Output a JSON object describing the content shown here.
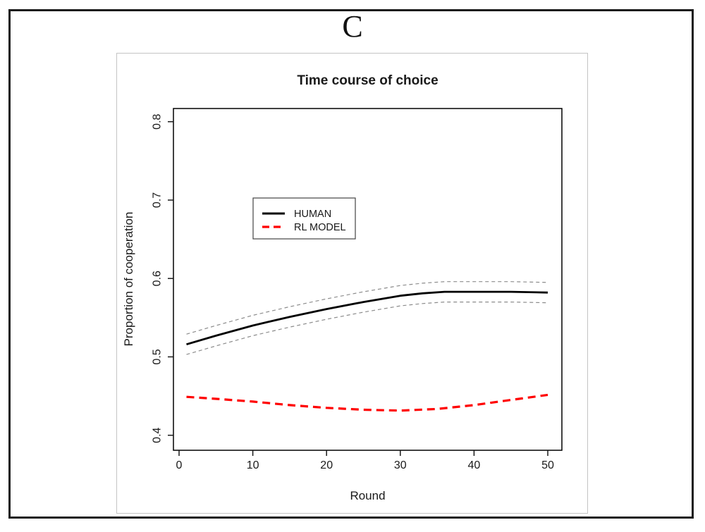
{
  "panel_label": "C",
  "chart_data": {
    "type": "line",
    "title": "Time course of choice",
    "xlabel": "Round",
    "ylabel": "Proportion of cooperation",
    "xlim": [
      0,
      50
    ],
    "ylim": [
      0.4,
      0.8
    ],
    "x_tick_values": [
      0,
      10,
      20,
      30,
      40,
      50
    ],
    "x_tick_labels": [
      "0",
      "10",
      "20",
      "30",
      "40",
      "50"
    ],
    "y_tick_values": [
      0.4,
      0.5,
      0.6,
      0.7,
      0.8
    ],
    "y_tick_labels": [
      "0.4",
      "0.5",
      "0.6",
      "0.7",
      "0.8"
    ],
    "grid": false,
    "legend_position": "upper-left-inside",
    "legend": [
      "HUMAN",
      "RL MODEL"
    ],
    "series": [
      {
        "name": "HUMAN",
        "color": "#000000",
        "line_style": "solid",
        "line_width": 2.8,
        "x": [
          1,
          5,
          10,
          15,
          20,
          25,
          30,
          33,
          36,
          40,
          45,
          50
        ],
        "y": [
          0.516,
          0.527,
          0.54,
          0.551,
          0.561,
          0.57,
          0.578,
          0.581,
          0.583,
          0.583,
          0.583,
          0.582
        ]
      },
      {
        "name": "HUMAN upper confidence band",
        "color": "#8c8c8c",
        "line_style": "dashed",
        "line_width": 1.2,
        "x": [
          1,
          5,
          10,
          15,
          20,
          25,
          30,
          33,
          36,
          40,
          45,
          50
        ],
        "y": [
          0.529,
          0.54,
          0.553,
          0.564,
          0.574,
          0.583,
          0.591,
          0.594,
          0.596,
          0.596,
          0.596,
          0.595
        ]
      },
      {
        "name": "HUMAN lower confidence band",
        "color": "#8c8c8c",
        "line_style": "dashed",
        "line_width": 1.2,
        "x": [
          1,
          5,
          10,
          15,
          20,
          25,
          30,
          33,
          36,
          40,
          45,
          50
        ],
        "y": [
          0.503,
          0.514,
          0.527,
          0.538,
          0.548,
          0.557,
          0.565,
          0.568,
          0.57,
          0.57,
          0.57,
          0.569
        ]
      },
      {
        "name": "RL MODEL",
        "color": "#ff0000",
        "line_style": "dashed",
        "line_width": 3.2,
        "x": [
          1,
          5,
          10,
          15,
          20,
          25,
          30,
          35,
          40,
          45,
          50
        ],
        "y": [
          0.449,
          0.4465,
          0.443,
          0.4385,
          0.435,
          0.4325,
          0.4315,
          0.4335,
          0.4385,
          0.445,
          0.4515
        ]
      }
    ]
  }
}
